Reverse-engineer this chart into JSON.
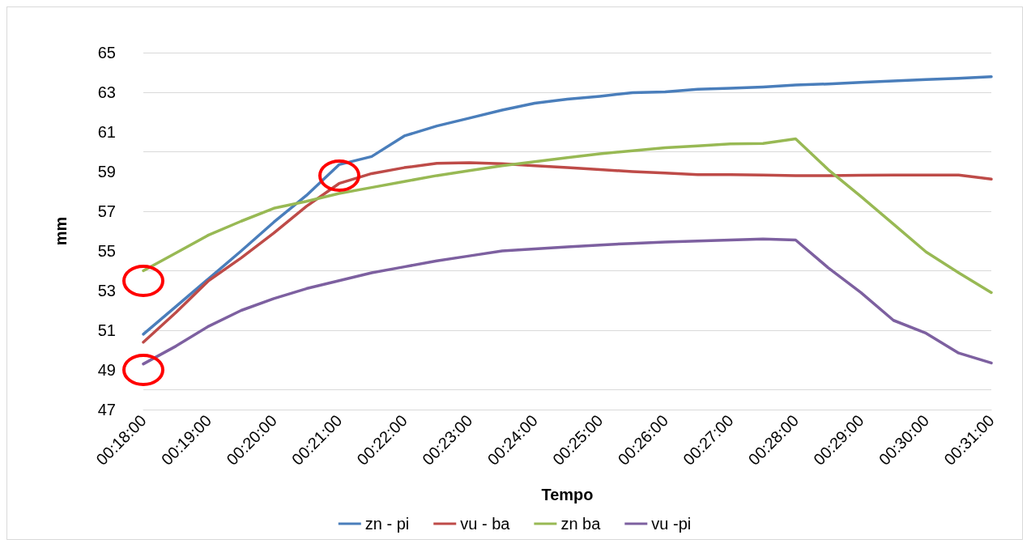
{
  "chart_data": {
    "type": "line",
    "xlabel": "Tempo",
    "ylabel": "mm",
    "categories": [
      "00:18:00",
      null,
      "00:19:00",
      null,
      "00:20:00",
      null,
      "00:21:00",
      null,
      "00:22:00",
      null,
      "00:23:00",
      null,
      "00:24:00",
      null,
      "00:25:00",
      null,
      "00:26:00",
      null,
      "00:27:00",
      null,
      "00:28:00",
      null,
      "00:29:00",
      null,
      "00:30:00",
      null,
      "00:31:00"
    ],
    "series": [
      {
        "name": "zn - pi",
        "color": "#4a7ebb",
        "values": [
          50.8,
          52.2,
          53.6,
          55.0,
          56.45,
          57.8,
          59.35,
          59.76,
          60.8,
          61.3,
          61.7,
          62.1,
          62.45,
          62.65,
          62.8,
          62.98,
          63.02,
          63.15,
          63.2,
          63.27,
          63.37,
          63.42,
          63.5,
          63.57,
          63.64,
          63.7,
          63.79
        ]
      },
      {
        "name": "vu - ba",
        "color": "#be4b48",
        "values": [
          50.4,
          51.9,
          53.5,
          54.65,
          55.9,
          57.25,
          58.4,
          58.9,
          59.2,
          59.42,
          59.45,
          59.4,
          59.3,
          59.2,
          59.1,
          59.0,
          58.93,
          58.85,
          58.85,
          58.83,
          58.8,
          58.8,
          58.82,
          58.83,
          58.83,
          58.83,
          58.62
        ]
      },
      {
        "name": "zn ba",
        "color": "#98b954",
        "values": [
          54.0,
          54.9,
          55.8,
          56.5,
          57.15,
          57.5,
          57.9,
          58.2,
          58.5,
          58.8,
          59.05,
          59.3,
          59.5,
          59.7,
          59.9,
          60.05,
          60.2,
          60.3,
          60.4,
          60.42,
          60.65,
          59.1,
          57.75,
          56.35,
          54.95,
          53.9,
          52.9
        ]
      },
      {
        "name": "vu -pi",
        "color": "#7d60a0",
        "values": [
          49.3,
          50.2,
          51.2,
          52.0,
          52.6,
          53.1,
          53.5,
          53.9,
          54.2,
          54.5,
          54.75,
          55.0,
          55.1,
          55.2,
          55.3,
          55.38,
          55.45,
          55.5,
          55.55,
          55.6,
          55.55,
          54.15,
          52.9,
          51.5,
          50.85,
          49.85,
          49.35
        ]
      }
    ],
    "ylim": [
      47,
      65
    ],
    "yticks": [
      47,
      49,
      51,
      53,
      55,
      57,
      59,
      61,
      63,
      65
    ],
    "grid": "y",
    "legend": "bottom",
    "marker": "none",
    "line_style": "solid"
  }
}
